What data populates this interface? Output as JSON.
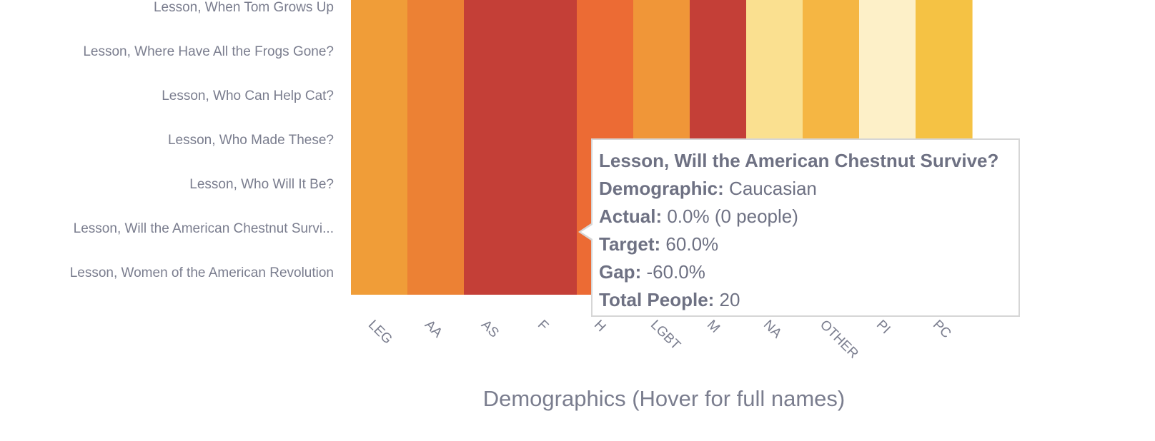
{
  "chart_data": {
    "type": "heatmap",
    "xlabel": "Demographics (Hover for full names)",
    "x_categories": [
      "LEG",
      "AA",
      "AS",
      "F",
      "H",
      "LGBT",
      "M",
      "NA",
      "OTHER",
      "PI",
      "PC"
    ],
    "y_categories": [
      "Lesson, When Tom Grows Up",
      "Lesson, Where Have All the Frogs Gone?",
      "Lesson, Who Can Help Cat?",
      "Lesson, Who Made These?",
      "Lesson, Who Will It Be?",
      "Lesson, Will the American Chestnut Survi...",
      "Lesson, Women of the American Revolution"
    ],
    "column_colors": [
      "#f09d38",
      "#ec8134",
      "#c43f37",
      "#c43f37",
      "#ec6b34",
      "#f09638",
      "#c43f37",
      "#fae090",
      "#f5b643",
      "#fdf0c8",
      "#f5c244"
    ]
  },
  "tooltip": {
    "title": "Lesson, Will the American Chestnut Survive?",
    "lines": [
      {
        "key": "Demographic:",
        "value": " Caucasian"
      },
      {
        "key": "Actual:",
        "value": " 0.0% (0 people)"
      },
      {
        "key": "Target:",
        "value": " 60.0%"
      },
      {
        "key": "Gap:",
        "value": " -60.0%"
      },
      {
        "key": "Total People:",
        "value": " 20"
      }
    ]
  }
}
